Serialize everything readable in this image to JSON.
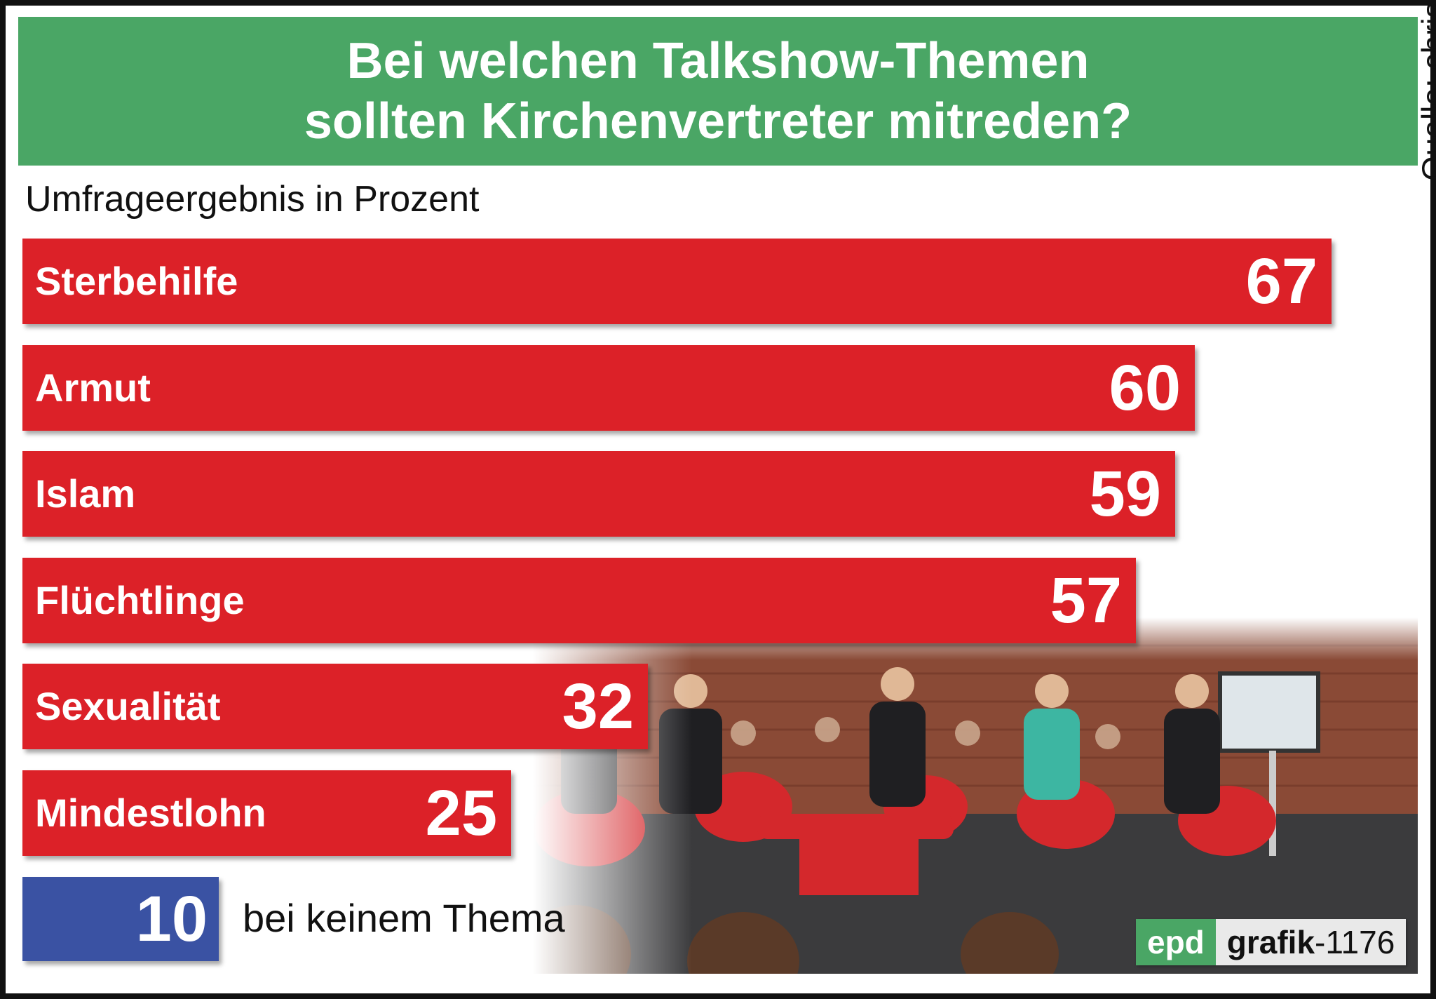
{
  "header": {
    "title_line1": "Bei welchen Talkshow-Themen",
    "title_line2": "sollten Kirchenvertreter mitreden?"
  },
  "subtitle": "Umfrageergebnis in Prozent",
  "source": "Quelle: chrismon, EMNID",
  "chart_data": {
    "type": "bar",
    "orientation": "horizontal",
    "title": "Bei welchen Talkshow-Themen sollten Kirchenvertreter mitreden?",
    "subtitle": "Umfrageergebnis in Prozent",
    "categories": [
      "Sterbehilfe",
      "Armut",
      "Islam",
      "Flüchtlinge",
      "Sexualität",
      "Mindestlohn"
    ],
    "values": [
      67,
      60,
      59,
      57,
      32,
      25
    ],
    "extra": {
      "label": "bei keinem Thema",
      "value": 10
    },
    "xlim": [
      0,
      70
    ],
    "grid": false,
    "legend": "none",
    "colors": {
      "bar": "#dc2128",
      "extra": "#3a52a3",
      "header": "#4aa665"
    }
  },
  "logo": {
    "epd": "epd",
    "grafik": "grafik",
    "number": "-1176"
  }
}
